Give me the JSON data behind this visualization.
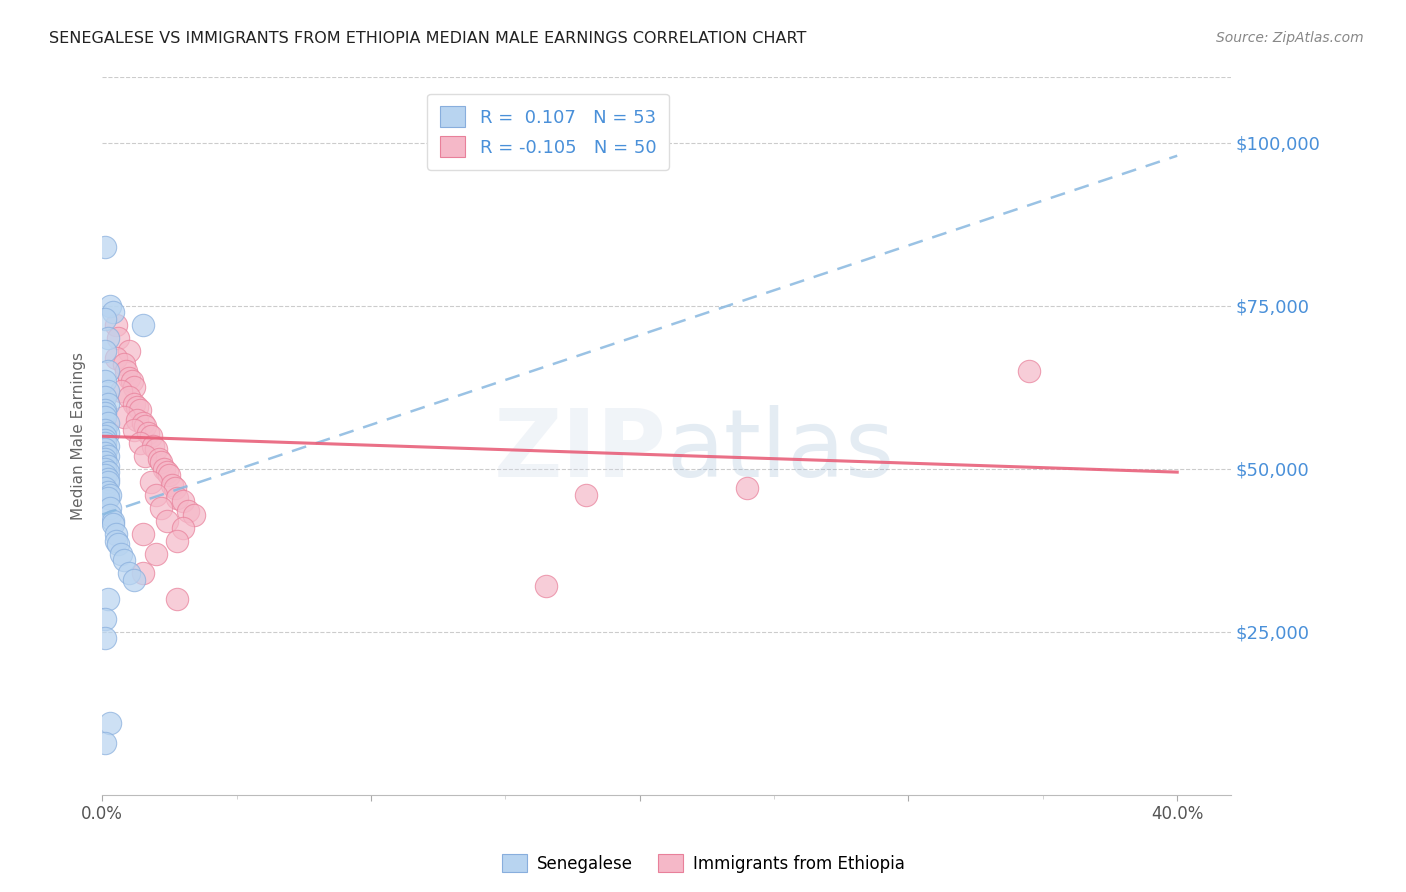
{
  "title": "SENEGALESE VS IMMIGRANTS FROM ETHIOPIA MEDIAN MALE EARNINGS CORRELATION CHART",
  "source": "Source: ZipAtlas.com",
  "ylabel": "Median Male Earnings",
  "ytick_values": [
    25000,
    50000,
    75000,
    100000
  ],
  "ylim": [
    0,
    110000
  ],
  "xlim": [
    0.0,
    0.42
  ],
  "background_color": "#ffffff",
  "grid_color": "#cccccc",
  "right_axis_color": "#4a90d9",
  "blue_scatter": [
    [
      0.001,
      84000
    ],
    [
      0.015,
      72000
    ],
    [
      0.003,
      75000
    ],
    [
      0.004,
      74000
    ],
    [
      0.001,
      73000
    ],
    [
      0.002,
      70000
    ],
    [
      0.001,
      68000
    ],
    [
      0.002,
      65000
    ],
    [
      0.001,
      63500
    ],
    [
      0.002,
      62000
    ],
    [
      0.001,
      61000
    ],
    [
      0.002,
      60000
    ],
    [
      0.001,
      59000
    ],
    [
      0.001,
      58500
    ],
    [
      0.001,
      58000
    ],
    [
      0.002,
      57000
    ],
    [
      0.001,
      56000
    ],
    [
      0.002,
      55500
    ],
    [
      0.001,
      55000
    ],
    [
      0.001,
      54500
    ],
    [
      0.001,
      54000
    ],
    [
      0.002,
      53500
    ],
    [
      0.001,
      53000
    ],
    [
      0.001,
      52500
    ],
    [
      0.002,
      52000
    ],
    [
      0.001,
      51500
    ],
    [
      0.001,
      51000
    ],
    [
      0.002,
      50500
    ],
    [
      0.001,
      50000
    ],
    [
      0.002,
      49500
    ],
    [
      0.001,
      49000
    ],
    [
      0.002,
      48500
    ],
    [
      0.002,
      48000
    ],
    [
      0.001,
      47000
    ],
    [
      0.002,
      46500
    ],
    [
      0.003,
      46000
    ],
    [
      0.002,
      45500
    ],
    [
      0.003,
      44000
    ],
    [
      0.003,
      43000
    ],
    [
      0.004,
      42000
    ],
    [
      0.004,
      41500
    ],
    [
      0.005,
      40000
    ],
    [
      0.005,
      39000
    ],
    [
      0.006,
      38500
    ],
    [
      0.007,
      37000
    ],
    [
      0.008,
      36000
    ],
    [
      0.01,
      34000
    ],
    [
      0.012,
      33000
    ],
    [
      0.002,
      30000
    ],
    [
      0.001,
      27000
    ],
    [
      0.001,
      24000
    ],
    [
      0.003,
      11000
    ],
    [
      0.001,
      8000
    ]
  ],
  "pink_scatter": [
    [
      0.005,
      72000
    ],
    [
      0.006,
      70000
    ],
    [
      0.01,
      68000
    ],
    [
      0.005,
      67000
    ],
    [
      0.008,
      66000
    ],
    [
      0.009,
      65000
    ],
    [
      0.01,
      64000
    ],
    [
      0.011,
      63500
    ],
    [
      0.012,
      62500
    ],
    [
      0.007,
      62000
    ],
    [
      0.01,
      61000
    ],
    [
      0.012,
      60000
    ],
    [
      0.013,
      59500
    ],
    [
      0.014,
      59000
    ],
    [
      0.008,
      58000
    ],
    [
      0.013,
      57500
    ],
    [
      0.015,
      57000
    ],
    [
      0.016,
      56500
    ],
    [
      0.012,
      56000
    ],
    [
      0.017,
      55500
    ],
    [
      0.018,
      55000
    ],
    [
      0.014,
      54000
    ],
    [
      0.019,
      53500
    ],
    [
      0.02,
      53000
    ],
    [
      0.016,
      52000
    ],
    [
      0.021,
      51500
    ],
    [
      0.022,
      51000
    ],
    [
      0.023,
      50000
    ],
    [
      0.024,
      49500
    ],
    [
      0.025,
      49000
    ],
    [
      0.018,
      48000
    ],
    [
      0.026,
      47500
    ],
    [
      0.027,
      47000
    ],
    [
      0.02,
      46000
    ],
    [
      0.028,
      45500
    ],
    [
      0.03,
      45000
    ],
    [
      0.022,
      44000
    ],
    [
      0.032,
      43500
    ],
    [
      0.034,
      43000
    ],
    [
      0.024,
      42000
    ],
    [
      0.03,
      41000
    ],
    [
      0.015,
      40000
    ],
    [
      0.028,
      39000
    ],
    [
      0.02,
      37000
    ],
    [
      0.015,
      34000
    ],
    [
      0.028,
      30000
    ],
    [
      0.345,
      65000
    ],
    [
      0.24,
      47000
    ],
    [
      0.18,
      46000
    ],
    [
      0.165,
      32000
    ]
  ],
  "blue_line": [
    [
      0.0,
      43000
    ],
    [
      0.4,
      98000
    ]
  ],
  "pink_line": [
    [
      0.0,
      55000
    ],
    [
      0.4,
      49500
    ]
  ],
  "xticks": [
    0.0,
    0.1,
    0.2,
    0.3,
    0.4
  ],
  "xtick_labels_show": [
    "0.0%",
    "",
    "",
    "",
    "40.0%"
  ]
}
